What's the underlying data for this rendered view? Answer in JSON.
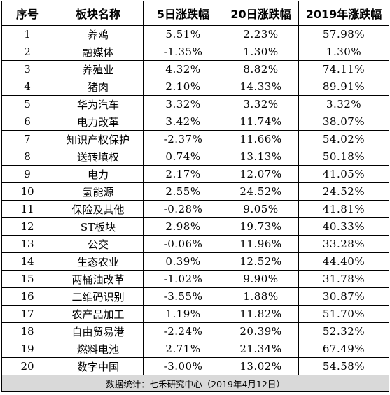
{
  "headers": [
    "序号",
    "板块名称",
    "5日涨跌幅",
    "20日涨跌幅",
    "2019年涨跌幅"
  ],
  "rows": [
    [
      "1",
      "养鸡",
      "5.51%",
      "2.23%",
      "57.98%"
    ],
    [
      "2",
      "融媒体",
      "-1.35%",
      "1.30%",
      "1.30%"
    ],
    [
      "3",
      "养殖业",
      "4.32%",
      "8.82%",
      "74.11%"
    ],
    [
      "4",
      "猪肉",
      "2.10%",
      "14.33%",
      "89.91%"
    ],
    [
      "5",
      "华为汽车",
      "3.32%",
      "3.32%",
      "3.32%"
    ],
    [
      "6",
      "电力改革",
      "3.42%",
      "11.74%",
      "38.07%"
    ],
    [
      "7",
      "知识产权保护",
      "-2.37%",
      "11.66%",
      "54.02%"
    ],
    [
      "8",
      "送转填权",
      "0.74%",
      "13.13%",
      "50.18%"
    ],
    [
      "9",
      "电力",
      "2.17%",
      "12.07%",
      "41.05%"
    ],
    [
      "10",
      "氢能源",
      "2.55%",
      "24.52%",
      "24.52%"
    ],
    [
      "11",
      "保险及其他",
      "-0.28%",
      "9.05%",
      "41.81%"
    ],
    [
      "12",
      "ST板块",
      "2.98%",
      "19.73%",
      "40.33%"
    ],
    [
      "13",
      "公交",
      "-0.06%",
      "11.96%",
      "33.28%"
    ],
    [
      "14",
      "生态农业",
      "0.39%",
      "12.52%",
      "44.40%"
    ],
    [
      "15",
      "两桶油改革",
      "-1.02%",
      "9.90%",
      "31.78%"
    ],
    [
      "16",
      "二维码识别",
      "-3.55%",
      "1.88%",
      "30.87%"
    ],
    [
      "17",
      "农产品加工",
      "1.19%",
      "11.82%",
      "51.70%"
    ],
    [
      "18",
      "自由贸易港",
      "-2.24%",
      "20.39%",
      "52.32%"
    ],
    [
      "19",
      "燃料电池",
      "2.71%",
      "21.34%",
      "67.49%"
    ],
    [
      "20",
      "数字中国",
      "-3.00%",
      "13.02%",
      "54.58%"
    ]
  ],
  "footer": "数据统计：七禾研究中心（2019年4月12日）"
}
